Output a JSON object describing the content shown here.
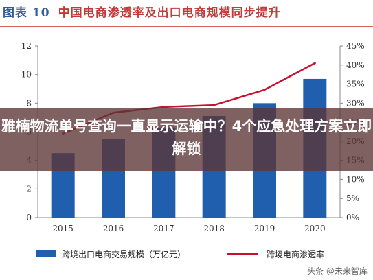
{
  "header": {
    "figure_label": "图表 10",
    "title": "中国电商渗透率及出口电商规模同步提升"
  },
  "overlay_headline": "雅楠物流单号查询一直显示运输中？4个应急处理方案立即解锁",
  "watermark": "头条 @未来智库",
  "chart_data": {
    "type": "bar",
    "categories": [
      "2015",
      "2016",
      "2017",
      "2018",
      "2019",
      "2020"
    ],
    "series": [
      {
        "name": "跨境出口电商交易规模（万亿元）",
        "type": "bar",
        "axis": "left",
        "color": "#1f5fad",
        "values": [
          4.5,
          5.5,
          6.3,
          7.1,
          8.0,
          9.7
        ]
      },
      {
        "name": "跨境电商渗透率",
        "type": "line",
        "axis": "right",
        "color": "#c8102e",
        "values": [
          22,
          27.5,
          29,
          29.5,
          33.5,
          40.5
        ]
      }
    ],
    "y_left": {
      "range": [
        0,
        12
      ],
      "ticks": [
        "0",
        "2",
        "4",
        "6",
        "8",
        "10",
        "12"
      ]
    },
    "y_right": {
      "range": [
        0,
        45
      ],
      "ticks": [
        "0%",
        "5%",
        "10%",
        "15%",
        "20%",
        "25%",
        "30%",
        "35%",
        "40%",
        "45%"
      ]
    },
    "legend_position": "bottom",
    "grid": false
  }
}
